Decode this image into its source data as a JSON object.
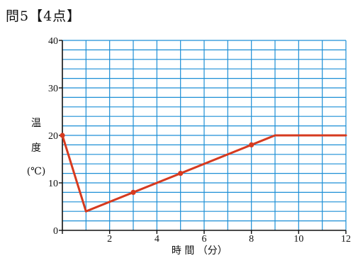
{
  "question": {
    "title": "問5【4点】"
  },
  "chart_data": {
    "type": "line",
    "title": "",
    "xlabel": "時 間 （分）",
    "ylabel_chars": [
      "温",
      "度",
      "(℃)"
    ],
    "xlim": [
      0,
      12
    ],
    "ylim": [
      0,
      40
    ],
    "xticks": [
      {
        "value": 0,
        "label": ""
      },
      {
        "value": 2,
        "label": "2"
      },
      {
        "value": 4,
        "label": "4"
      },
      {
        "value": 6,
        "label": "6"
      },
      {
        "value": 8,
        "label": "8"
      },
      {
        "value": 10,
        "label": "10"
      },
      {
        "value": 12,
        "label": "12"
      }
    ],
    "yticks": [
      {
        "value": 0,
        "label": "0"
      },
      {
        "value": 10,
        "label": "10"
      },
      {
        "value": 20,
        "label": "20"
      },
      {
        "value": 30,
        "label": "30"
      },
      {
        "value": 40,
        "label": "40"
      }
    ],
    "grid": true,
    "x_minor_step": 1,
    "y_minor_step": 2,
    "series": [
      {
        "color": "#d63a1f",
        "x": [
          0,
          1,
          9,
          12
        ],
        "y": [
          20,
          4,
          20,
          20
        ]
      }
    ],
    "markers": [
      {
        "x": 0,
        "y": 20
      },
      {
        "x": 3,
        "y": 8
      },
      {
        "x": 5,
        "y": 12
      },
      {
        "x": 8,
        "y": 18
      }
    ],
    "colors": {
      "grid": "#1d8fd6",
      "line": "#d63a1f",
      "axis": "#111111"
    }
  }
}
